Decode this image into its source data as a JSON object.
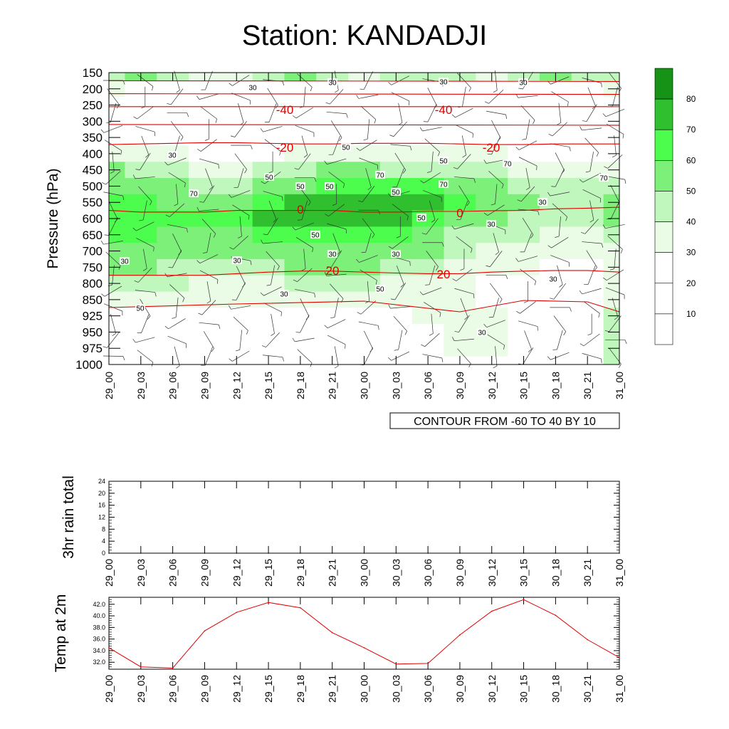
{
  "title": "Station: KANDADJI",
  "chart_data": [
    {
      "type": "heatmap",
      "ylabel": "Pressure (hPa)",
      "xlabel": "",
      "y_reversed": true,
      "pressure_levels": [
        150,
        200,
        250,
        300,
        350,
        400,
        450,
        500,
        550,
        600,
        650,
        700,
        750,
        800,
        850,
        925,
        950,
        975,
        1000
      ],
      "x_ticks": [
        "29_00",
        "29_03",
        "29_06",
        "29_09",
        "29_12",
        "29_15",
        "29_18",
        "29_21",
        "30_00",
        "30_03",
        "30_06",
        "30_09",
        "30_12",
        "30_15",
        "30_18",
        "30_21",
        "31_00"
      ],
      "colorbar": {
        "levels": [
          10,
          20,
          30,
          40,
          50,
          60,
          70,
          80
        ],
        "colors": [
          "#ffffff",
          "#ffffff",
          "#ffffff",
          "#eafbe6",
          "#bff7bc",
          "#7df07a",
          "#4dfd4d",
          "#2fbf2f",
          "#169216"
        ]
      },
      "shading_levels": [
        [
          40,
          50,
          40,
          35,
          30,
          40,
          50,
          40,
          35,
          40,
          40,
          40,
          35,
          40,
          50,
          40,
          40
        ],
        [
          30,
          25,
          25,
          25,
          25,
          25,
          25,
          25,
          25,
          25,
          25,
          25,
          25,
          25,
          25,
          25,
          30
        ],
        [
          25,
          25,
          25,
          25,
          25,
          25,
          25,
          25,
          25,
          25,
          25,
          25,
          25,
          25,
          25,
          25,
          25
        ],
        [
          25,
          25,
          25,
          25,
          25,
          25,
          25,
          25,
          25,
          25,
          25,
          25,
          25,
          25,
          25,
          25,
          25
        ],
        [
          25,
          25,
          25,
          25,
          25,
          25,
          25,
          25,
          25,
          25,
          25,
          25,
          25,
          25,
          25,
          25,
          25
        ],
        [
          35,
          35,
          30,
          25,
          25,
          25,
          30,
          35,
          35,
          35,
          35,
          30,
          30,
          25,
          25,
          25,
          25
        ],
        [
          50,
          45,
          40,
          35,
          35,
          40,
          40,
          50,
          50,
          45,
          40,
          40,
          40,
          35,
          30,
          30,
          35
        ],
        [
          55,
          55,
          50,
          45,
          45,
          55,
          55,
          65,
          65,
          65,
          60,
          55,
          50,
          45,
          40,
          40,
          45
        ],
        [
          60,
          60,
          55,
          55,
          55,
          65,
          70,
          75,
          70,
          75,
          70,
          65,
          55,
          50,
          45,
          45,
          55
        ],
        [
          60,
          60,
          60,
          60,
          60,
          75,
          75,
          70,
          70,
          70,
          65,
          55,
          50,
          45,
          40,
          40,
          55
        ],
        [
          60,
          60,
          55,
          55,
          55,
          60,
          60,
          65,
          60,
          60,
          55,
          45,
          40,
          40,
          35,
          35,
          45
        ],
        [
          55,
          55,
          50,
          50,
          50,
          55,
          55,
          55,
          55,
          55,
          50,
          40,
          35,
          35,
          30,
          30,
          35
        ],
        [
          50,
          50,
          45,
          45,
          45,
          45,
          50,
          50,
          50,
          45,
          40,
          35,
          30,
          30,
          25,
          25,
          30
        ],
        [
          40,
          40,
          40,
          35,
          35,
          35,
          40,
          40,
          40,
          35,
          35,
          30,
          25,
          25,
          25,
          25,
          30
        ],
        [
          30,
          30,
          30,
          30,
          30,
          30,
          30,
          30,
          30,
          30,
          35,
          30,
          25,
          25,
          25,
          25,
          35
        ],
        [
          25,
          25,
          25,
          25,
          25,
          25,
          25,
          25,
          25,
          25,
          30,
          30,
          30,
          25,
          25,
          25,
          40
        ],
        [
          25,
          25,
          25,
          25,
          25,
          25,
          25,
          25,
          25,
          25,
          25,
          30,
          30,
          25,
          25,
          25,
          45
        ],
        [
          25,
          25,
          25,
          25,
          25,
          25,
          25,
          25,
          25,
          25,
          25,
          30,
          30,
          25,
          25,
          25,
          45
        ],
        [
          25,
          25,
          25,
          25,
          25,
          25,
          25,
          25,
          25,
          25,
          25,
          25,
          25,
          25,
          25,
          25,
          45
        ]
      ],
      "temperature_contours": [
        {
          "label": "-40",
          "pressure": [
            255,
            255,
            255,
            255,
            255,
            255,
            255,
            255,
            255,
            255,
            255,
            255,
            255,
            255,
            255,
            255,
            255
          ]
        },
        {
          "label": "-20",
          "pressure": [
            372,
            370,
            368,
            366,
            366,
            368,
            370,
            370,
            368,
            368,
            368,
            370,
            372,
            372,
            370,
            370,
            370
          ]
        },
        {
          "label": "0",
          "pressure": [
            575,
            580,
            580,
            580,
            575,
            575,
            575,
            575,
            580,
            580,
            578,
            578,
            576,
            575,
            570,
            568,
            565
          ]
        },
        {
          "label": "20",
          "pressure": [
            775,
            775,
            775,
            775,
            770,
            765,
            762,
            762,
            765,
            768,
            770,
            770,
            765,
            762,
            760,
            760,
            765
          ]
        }
      ],
      "contour_label_text": "CONTOUR FROM -60 TO 40 BY 10",
      "humidity_labels": [
        "30",
        "30",
        "30",
        "30",
        "30",
        "50",
        "50",
        "70",
        "50",
        "70",
        "70",
        "50",
        "50",
        "70",
        "50",
        "70",
        "50",
        "50",
        "30",
        "30",
        "30",
        "30",
        "30",
        "30",
        "30",
        "30",
        "50",
        "50",
        "30"
      ],
      "temperature_labels": [
        "-40",
        "-40",
        "-20",
        "-20",
        "0",
        "0",
        "20",
        "20"
      ]
    },
    {
      "type": "line",
      "ylabel": "3hr rain total",
      "xlabel": "",
      "y_ticks": [
        "0",
        "4",
        "8",
        "12",
        "16",
        "20",
        "24"
      ],
      "ylim": [
        0,
        24
      ],
      "x_ticks": [
        "29_00",
        "29_03",
        "29_06",
        "29_09",
        "29_12",
        "29_15",
        "29_18",
        "29_21",
        "30_00",
        "30_03",
        "30_06",
        "30_09",
        "30_12",
        "30_15",
        "30_18",
        "30_21",
        "31_00"
      ],
      "values": [
        0,
        0,
        0,
        0,
        0,
        0,
        0,
        0,
        0,
        0,
        0,
        0,
        0,
        0,
        0,
        0,
        0
      ]
    },
    {
      "type": "line",
      "ylabel": "Temp at 2m",
      "xlabel": "",
      "y_ticks": [
        "32.0",
        "34.0",
        "36.0",
        "38.0",
        "40.0",
        "42.0"
      ],
      "ylim": [
        30.8,
        43.2
      ],
      "x_ticks": [
        "29_00",
        "29_03",
        "29_06",
        "29_09",
        "29_12",
        "29_15",
        "29_18",
        "29_21",
        "30_00",
        "30_03",
        "30_06",
        "30_09",
        "30_12",
        "30_15",
        "30_18",
        "30_21",
        "31_00"
      ],
      "values": [
        34.5,
        31.2,
        31.0,
        37.4,
        40.6,
        42.3,
        41.4,
        37.1,
        34.5,
        31.7,
        31.8,
        36.7,
        40.8,
        42.8,
        40.1,
        35.9,
        32.8
      ],
      "line_color": "#e00000"
    }
  ]
}
